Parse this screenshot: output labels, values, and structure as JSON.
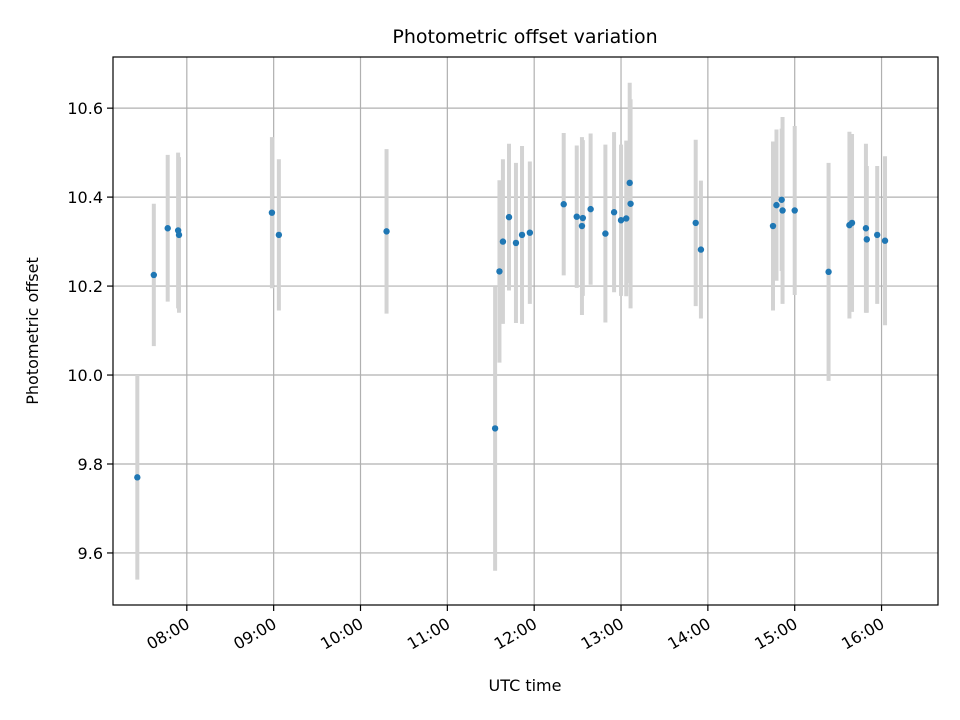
{
  "chart_data": {
    "type": "scatter",
    "title": "Photometric offset variation",
    "xlabel": "UTC time",
    "ylabel": "Photometric offset",
    "grid": true,
    "x_unit": "hours UTC",
    "xlim": [
      7.15,
      16.65
    ],
    "ylim": [
      9.483,
      10.715
    ],
    "x_ticks": [
      {
        "value": 8,
        "label": "08:00"
      },
      {
        "value": 9,
        "label": "09:00"
      },
      {
        "value": 10,
        "label": "10:00"
      },
      {
        "value": 11,
        "label": "11:00"
      },
      {
        "value": 12,
        "label": "12:00"
      },
      {
        "value": 13,
        "label": "13:00"
      },
      {
        "value": 14,
        "label": "14:00"
      },
      {
        "value": 15,
        "label": "15:00"
      },
      {
        "value": 16,
        "label": "16:00"
      }
    ],
    "y_ticks": [
      {
        "value": 9.6,
        "label": "9.6"
      },
      {
        "value": 9.8,
        "label": "9.8"
      },
      {
        "value": 10.0,
        "label": "10.0"
      },
      {
        "value": 10.2,
        "label": "10.2"
      },
      {
        "value": 10.4,
        "label": "10.4"
      },
      {
        "value": 10.6,
        "label": "10.6"
      }
    ],
    "marker_color": "#1f77b4",
    "errorbar_color": "#d3d3d3",
    "points": [
      {
        "x": 7.43,
        "y": 9.77,
        "err": 0.23
      },
      {
        "x": 7.62,
        "y": 10.225,
        "err": 0.16
      },
      {
        "x": 7.78,
        "y": 10.33,
        "err": 0.165
      },
      {
        "x": 7.9,
        "y": 10.325,
        "err": 0.175
      },
      {
        "x": 7.91,
        "y": 10.315,
        "err": 0.175
      },
      {
        "x": 8.98,
        "y": 10.365,
        "err": 0.17
      },
      {
        "x": 9.06,
        "y": 10.315,
        "err": 0.17
      },
      {
        "x": 10.3,
        "y": 10.323,
        "err": 0.185
      },
      {
        "x": 11.55,
        "y": 9.88,
        "err": 0.32
      },
      {
        "x": 11.6,
        "y": 10.233,
        "err": 0.205
      },
      {
        "x": 11.64,
        "y": 10.3,
        "err": 0.185
      },
      {
        "x": 11.71,
        "y": 10.355,
        "err": 0.165
      },
      {
        "x": 11.79,
        "y": 10.297,
        "err": 0.18
      },
      {
        "x": 11.86,
        "y": 10.315,
        "err": 0.2
      },
      {
        "x": 11.95,
        "y": 10.32,
        "err": 0.16
      },
      {
        "x": 12.34,
        "y": 10.384,
        "err": 0.16
      },
      {
        "x": 12.49,
        "y": 10.356,
        "err": 0.16
      },
      {
        "x": 12.55,
        "y": 10.335,
        "err": 0.2
      },
      {
        "x": 12.56,
        "y": 10.353,
        "err": 0.175
      },
      {
        "x": 12.65,
        "y": 10.373,
        "err": 0.17
      },
      {
        "x": 12.82,
        "y": 10.318,
        "err": 0.2
      },
      {
        "x": 12.92,
        "y": 10.366,
        "err": 0.18
      },
      {
        "x": 13.0,
        "y": 10.348,
        "err": 0.17
      },
      {
        "x": 13.06,
        "y": 10.352,
        "err": 0.175
      },
      {
        "x": 13.1,
        "y": 10.432,
        "err": 0.225
      },
      {
        "x": 13.11,
        "y": 10.385,
        "err": 0.235
      },
      {
        "x": 13.86,
        "y": 10.342,
        "err": 0.187
      },
      {
        "x": 13.92,
        "y": 10.282,
        "err": 0.155
      },
      {
        "x": 14.75,
        "y": 10.335,
        "err": 0.19
      },
      {
        "x": 14.79,
        "y": 10.382,
        "err": 0.17
      },
      {
        "x": 14.85,
        "y": 10.394,
        "err": 0.16
      },
      {
        "x": 14.86,
        "y": 10.37,
        "err": 0.21
      },
      {
        "x": 15.0,
        "y": 10.37,
        "err": 0.19
      },
      {
        "x": 15.39,
        "y": 10.232,
        "err": 0.245
      },
      {
        "x": 15.63,
        "y": 10.337,
        "err": 0.21
      },
      {
        "x": 15.66,
        "y": 10.342,
        "err": 0.2
      },
      {
        "x": 15.82,
        "y": 10.33,
        "err": 0.19
      },
      {
        "x": 15.83,
        "y": 10.305,
        "err": 0.165
      },
      {
        "x": 15.95,
        "y": 10.315,
        "err": 0.155
      },
      {
        "x": 16.04,
        "y": 10.302,
        "err": 0.19
      }
    ]
  }
}
